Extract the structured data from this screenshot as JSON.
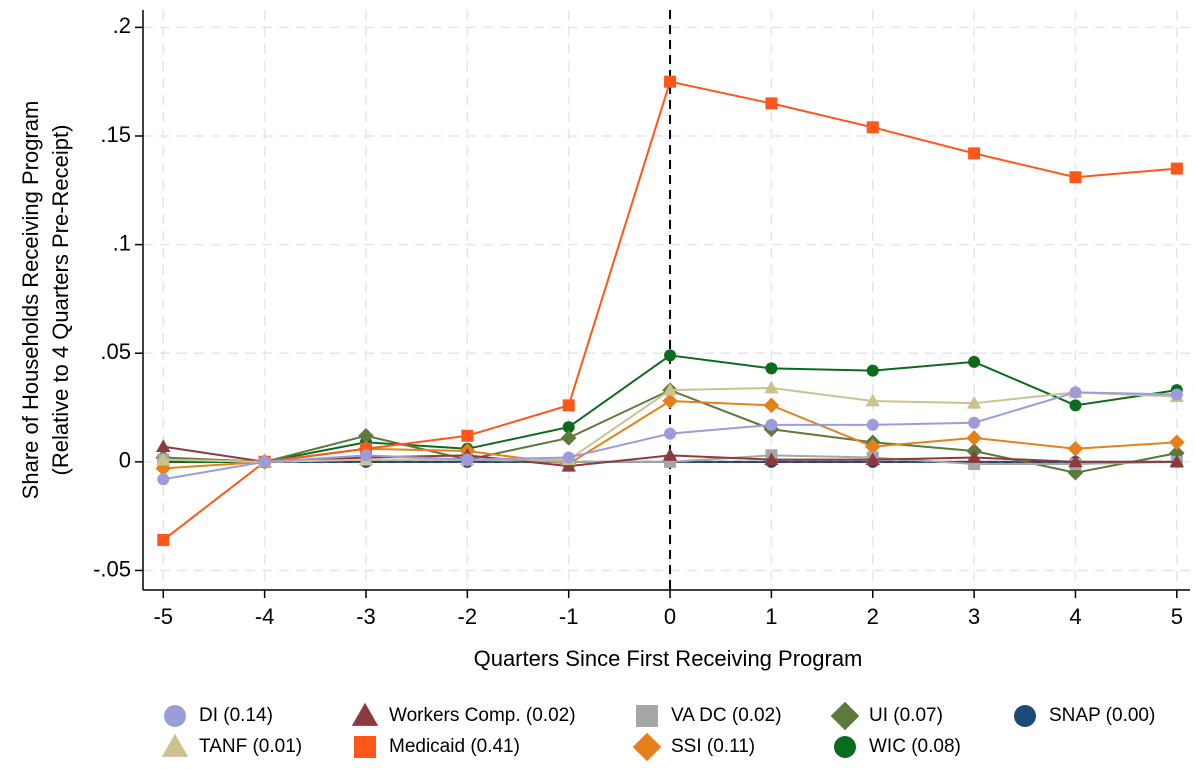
{
  "chart_data": {
    "type": "line",
    "xlabel": "Quarters Since First Receiving Program",
    "ylabel": [
      "Share of Households Receiving Program",
      "(Relative to 4 Quarters Pre-Receipt)"
    ],
    "x": [
      -5,
      -4,
      -3,
      -2,
      -1,
      0,
      1,
      2,
      3,
      4,
      5
    ],
    "xlim": [
      -5.2,
      5.13
    ],
    "xticks": [
      -5,
      -4,
      -3,
      -2,
      -1,
      0,
      1,
      2,
      3,
      4,
      5
    ],
    "ylim": [
      -0.059,
      0.208
    ],
    "yticks": [
      {
        "value": -0.05,
        "label": "-.05"
      },
      0,
      {
        "value": 0.05,
        "label": ".05"
      },
      {
        "value": 0.1,
        "label": ".1"
      },
      {
        "value": 0.15,
        "label": ".15"
      },
      {
        "value": 0.2,
        "label": ".2"
      }
    ],
    "grid": true,
    "reference_lines": {
      "x": 0,
      "y": 0
    },
    "series": [
      {
        "name": "DI (0.14)",
        "color": "#9e9bdb",
        "marker": "circle",
        "values": [
          -0.008,
          0,
          0.003,
          0.001,
          0.002,
          0.013,
          0.017,
          0.017,
          0.018,
          0.032,
          0.031
        ]
      },
      {
        "name": "TANF (0.01)",
        "color": "#cbc28f",
        "marker": "triangle",
        "values": [
          0.001,
          0,
          0.001,
          0.001,
          0.001,
          0.033,
          0.034,
          0.028,
          0.027,
          0.032,
          0.03
        ]
      },
      {
        "name": "Workers Comp. (0.02)",
        "color": "#8c3a40",
        "marker": "triangle",
        "values": [
          0.007,
          0,
          0.002,
          0.003,
          -0.002,
          0.003,
          0.001,
          0.001,
          0.002,
          0,
          0
        ]
      },
      {
        "name": "Medicaid (0.41)",
        "color": "#ff5719",
        "marker": "square",
        "values": [
          -0.036,
          0,
          0.006,
          0.012,
          0.026,
          0.175,
          0.165,
          0.154,
          0.142,
          0.131,
          0.135
        ]
      },
      {
        "name": "VA DC (0.02)",
        "color": "#a6a6a6",
        "marker": "square",
        "values": [
          0.001,
          0,
          0.001,
          0.001,
          0,
          0,
          0.003,
          0.002,
          -0.001,
          -0.001,
          0
        ]
      },
      {
        "name": "SSI (0.11)",
        "color": "#e5801a",
        "marker": "diamond",
        "values": [
          -0.003,
          0,
          0.006,
          0.005,
          -0.001,
          0.028,
          0.026,
          0.007,
          0.011,
          0.006,
          0.009
        ]
      },
      {
        "name": "UI (0.07)",
        "color": "#5e7a3b",
        "marker": "diamond",
        "values": [
          0.002,
          0,
          0.012,
          0.001,
          0.011,
          0.033,
          0.015,
          0.009,
          0.005,
          -0.005,
          0.004
        ]
      },
      {
        "name": "WIC (0.08)",
        "color": "#0b6b1f",
        "marker": "circle",
        "values": [
          0,
          0,
          0.009,
          0.006,
          0.016,
          0.049,
          0.043,
          0.042,
          0.046,
          0.026,
          0.033
        ]
      },
      {
        "name": "SNAP (0.00)",
        "color": "#1c4a7a",
        "marker": "circle",
        "values": [
          0,
          0,
          0,
          0,
          0,
          0,
          0,
          0,
          0,
          0,
          0
        ]
      }
    ]
  }
}
